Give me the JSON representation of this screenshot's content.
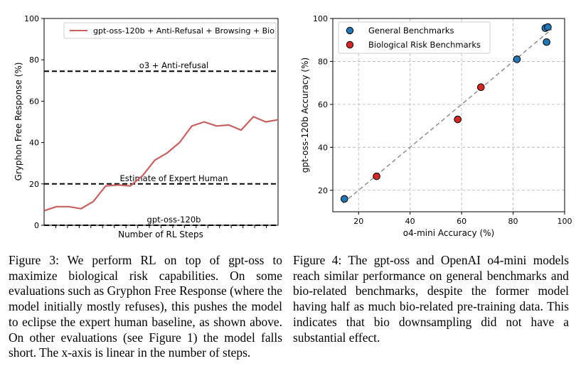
{
  "chart_data": [
    {
      "type": "line",
      "title": "",
      "xlabel": "Number of RL Steps",
      "ylabel": "Gryphon Free Response (%)",
      "ylim": [
        0,
        100
      ],
      "yticks": [
        0,
        20,
        40,
        60,
        80,
        100
      ],
      "xticks_count": 19,
      "grid": false,
      "legend_position": "top-right",
      "series": [
        {
          "name": "gpt-oss-120b + Anti-Refusal + Browsing + Bio",
          "color": "#c8605f",
          "x": [
            0,
            1,
            2,
            3,
            4,
            5,
            6,
            7,
            8,
            9,
            10,
            11,
            12,
            13,
            14,
            15,
            16,
            17,
            18,
            19
          ],
          "values": [
            7,
            9,
            9,
            8,
            11.5,
            19,
            19.5,
            19,
            24,
            31.5,
            35,
            40,
            48,
            50,
            48,
            48.5,
            46,
            52.5,
            50,
            51
          ]
        }
      ],
      "reference_lines": [
        {
          "label": "o3 + Anti-refusal",
          "y": 74.5
        },
        {
          "label": "Estimate of Expert Human",
          "y": 20
        },
        {
          "label": "gpt-oss-120b",
          "y": 0
        }
      ]
    },
    {
      "type": "scatter",
      "title": "",
      "xlabel": "o4-mini Accuracy (%)",
      "ylabel": "gpt-oss-120b Accuracy (%)",
      "xlim": [
        10,
        100
      ],
      "ylim": [
        10,
        100
      ],
      "xticks": [
        20,
        40,
        60,
        80,
        100
      ],
      "yticks": [
        20,
        40,
        60,
        80,
        100
      ],
      "grid": true,
      "legend_position": "top-left",
      "diagonal": true,
      "series": [
        {
          "name": "General Benchmarks",
          "color": "#1f77b4",
          "points": [
            [
              14.5,
              16
            ],
            [
              81.5,
              81
            ],
            [
              92.5,
              95.5
            ],
            [
              93.5,
              96
            ],
            [
              93,
              89
            ]
          ]
        },
        {
          "name": "Biological Risk Benchmarks",
          "color": "#d62728",
          "points": [
            [
              27,
              26.5
            ],
            [
              58.5,
              53
            ],
            [
              67.5,
              68
            ]
          ]
        }
      ]
    }
  ],
  "captions": {
    "figure3": "Figure 3: We perform RL on top of gpt-oss to maximize biological risk capabilities. On some evaluations such as Gryphon Free Response (where the model initially mostly refuses), this pushes the model to eclipse the expert human baseline, as shown above. On other evaluations (see Figure 1) the model falls short. The x-axis is linear in the number of steps.",
    "figure4": "Figure 4: The gpt-oss and OpenAI o4-mini models reach similar performance on general benchmarks and bio-related benchmarks, despite the former model having half as much bio-related pre-training data. This indicates that bio downsampling did not have a substantial effect."
  }
}
